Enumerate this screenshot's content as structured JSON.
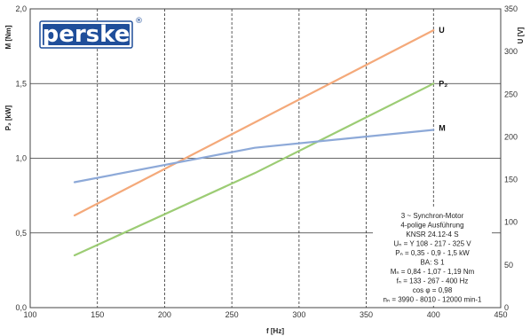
{
  "logo": {
    "text": "perske",
    "registered": "®",
    "color": "#1f4e9a"
  },
  "chart_data": {
    "type": "line",
    "xlabel": "f [Hz]",
    "ylabel_left_top": "M [Nm]",
    "ylabel_left": "P₂ [kW]",
    "ylabel_right": "U [V]",
    "xlim": [
      100,
      450
    ],
    "ylim_left": [
      0,
      2.0
    ],
    "ylim_right": [
      0,
      350
    ],
    "x_ticks": [
      "100",
      "150",
      "200",
      "250",
      "300",
      "350",
      "400",
      "450"
    ],
    "y_left_ticks": [
      "0,0",
      "0,5",
      "1,0",
      "1,5",
      "2,0"
    ],
    "y_right_ticks": [
      "0",
      "50",
      "100",
      "150",
      "200",
      "250",
      "300",
      "350"
    ],
    "grid": {
      "vertical_dashed": [
        150,
        200,
        250,
        300,
        350,
        400
      ],
      "horizontal_solid": [
        0.5,
        1.0,
        1.5
      ]
    },
    "series": [
      {
        "name": "U",
        "axis": "right",
        "color": "#f4a97a",
        "x": [
          133,
          267,
          400
        ],
        "y": [
          108,
          217,
          325
        ]
      },
      {
        "name": "P₂",
        "axis": "left",
        "color": "#9ccc74",
        "x": [
          133,
          267,
          400
        ],
        "y": [
          0.35,
          0.9,
          1.5
        ]
      },
      {
        "name": "M",
        "axis": "left",
        "color": "#8da9d8",
        "x": [
          133,
          267,
          400
        ],
        "y": [
          0.84,
          1.07,
          1.19
        ]
      }
    ],
    "info_box": [
      "3 ~ Synchron-Motor",
      "4-polige Ausführung",
      "KNSR 24.12-4 S",
      "Uₙ = Y 108 - 217 - 325 V",
      "Pₙ = 0,35 - 0,9 - 1,5 kW",
      "BA: S 1",
      "Mₙ = 0,84 - 1,07 - 1,19 Nm",
      "fₙ = 133 - 267 - 400 Hz",
      "cos φ = 0,98",
      "nₙ = 3990 - 8010 - 12000 min-1"
    ]
  }
}
